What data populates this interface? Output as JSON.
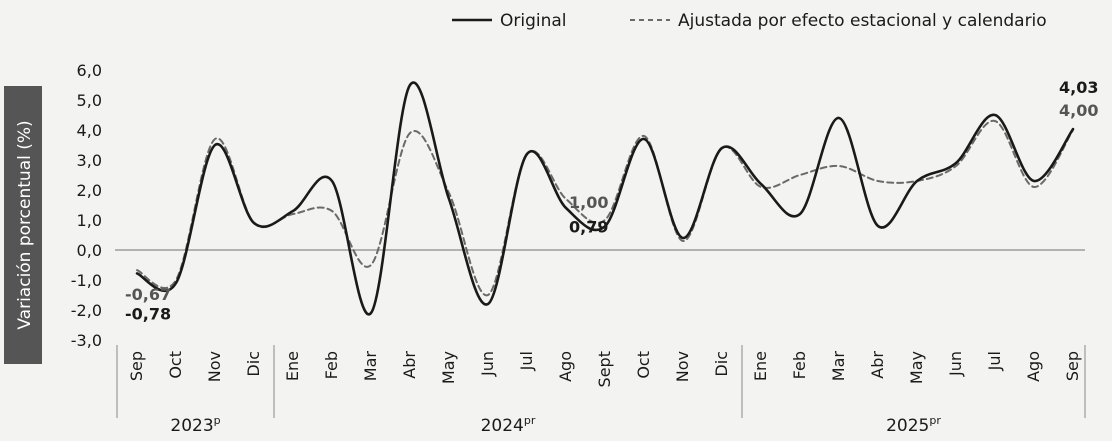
{
  "chart_data": {
    "type": "line",
    "ylabel": "Variación porcentual (%)",
    "yticks": [
      "6,0",
      "5,0",
      "4,0",
      "3,0",
      "2,0",
      "1,0",
      "0,0",
      "-1,0",
      "-2,0",
      "-3,0"
    ],
    "ylim": [
      -3,
      6
    ],
    "categories": [
      "Sep",
      "Oct",
      "Nov",
      "Dic",
      "Ene",
      "Feb",
      "Mar",
      "Abr",
      "May",
      "Jun",
      "Jul",
      "Ago",
      "Sept",
      "Oct",
      "Nov",
      "Dic",
      "Ene",
      "Feb",
      "Mar",
      "Abr",
      "May",
      "Jun",
      "Jul",
      "Ago",
      "Sep"
    ],
    "years": [
      {
        "label": "2023",
        "sup": "p",
        "span": [
          0,
          3
        ]
      },
      {
        "label": "2024",
        "sup": "pr",
        "span": [
          4,
          15
        ]
      },
      {
        "label": "2025",
        "sup": "pr",
        "span": [
          16,
          24
        ]
      }
    ],
    "series": [
      {
        "name": "Original",
        "style": "solid",
        "color": "#1a1a1a",
        "values": [
          -0.78,
          -1.1,
          3.5,
          0.9,
          1.3,
          2.3,
          -2.1,
          5.5,
          1.7,
          -1.8,
          3.2,
          1.4,
          0.79,
          3.7,
          0.4,
          3.4,
          2.2,
          1.2,
          4.4,
          0.8,
          2.3,
          2.9,
          4.5,
          2.3,
          4.03
        ]
      },
      {
        "name": "Ajustada por efecto estacional y calendario",
        "style": "dashed",
        "color": "#6a6a6a",
        "values": [
          -0.67,
          -1.0,
          3.7,
          0.9,
          1.2,
          1.3,
          -0.5,
          3.9,
          1.9,
          -1.5,
          3.2,
          1.7,
          1.0,
          3.8,
          0.3,
          3.4,
          2.1,
          2.5,
          2.8,
          2.3,
          2.3,
          2.8,
          4.3,
          2.1,
          4.0
        ]
      }
    ],
    "annotations": [
      {
        "text": "-0,67",
        "series": 1,
        "index": 0
      },
      {
        "text": "-0,78",
        "series": 0,
        "index": 0
      },
      {
        "text": "1,00",
        "series": 1,
        "index": 12
      },
      {
        "text": "0,79",
        "series": 0,
        "index": 12
      },
      {
        "text": "4,03",
        "series": 0,
        "index": 24
      },
      {
        "text": "4,00",
        "series": 1,
        "index": 24
      }
    ],
    "legend": "top-right"
  }
}
